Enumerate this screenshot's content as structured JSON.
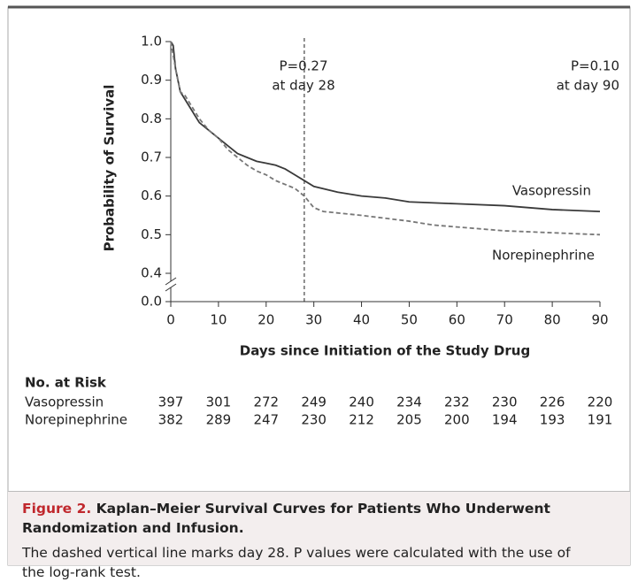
{
  "chart_data": {
    "type": "line",
    "xlabel": "Days since Initiation of the Study Drug",
    "ylabel": "Probability of Survival",
    "xlim": [
      0,
      90
    ],
    "xticks": [
      0,
      10,
      20,
      30,
      40,
      50,
      60,
      70,
      80,
      90
    ],
    "ylim": [
      0.4,
      1.0
    ],
    "yticks": [
      {
        "value": 0,
        "label": "0.0"
      },
      0.4,
      0.5,
      0.6,
      0.7,
      0.8,
      0.9,
      {
        "value": 1,
        "label": "1.0"
      }
    ],
    "axis_break": true,
    "reference_line_x": 28,
    "annotations": [
      "P=0.27",
      "at day 28",
      "P=0.10",
      "at day 90"
    ],
    "series": [
      {
        "name": "Vasopressin",
        "color": "#3a3a3a",
        "dashed": false,
        "x": [
          0,
          0.5,
          1,
          2,
          3,
          4,
          5,
          6,
          8,
          10,
          12,
          14,
          16,
          18,
          20,
          22,
          24,
          26,
          28,
          30,
          35,
          40,
          45,
          50,
          60,
          70,
          80,
          90
        ],
        "values": [
          1.0,
          0.99,
          0.93,
          0.87,
          0.85,
          0.83,
          0.81,
          0.79,
          0.77,
          0.75,
          0.73,
          0.71,
          0.7,
          0.69,
          0.685,
          0.68,
          0.67,
          0.655,
          0.64,
          0.625,
          0.61,
          0.6,
          0.595,
          0.585,
          0.58,
          0.575,
          0.565,
          0.56
        ]
      },
      {
        "name": "Norepinephrine",
        "color": "#777777",
        "dashed": true,
        "x": [
          0,
          1,
          2,
          3,
          4,
          5,
          6,
          8,
          10,
          12,
          14,
          16,
          18,
          20,
          22,
          24,
          26,
          28,
          30,
          32,
          40,
          50,
          55,
          60,
          70,
          80,
          90
        ],
        "values": [
          1.0,
          0.93,
          0.87,
          0.86,
          0.84,
          0.82,
          0.8,
          0.77,
          0.75,
          0.72,
          0.7,
          0.68,
          0.665,
          0.655,
          0.64,
          0.63,
          0.62,
          0.6,
          0.57,
          0.56,
          0.55,
          0.535,
          0.525,
          0.52,
          0.51,
          0.505,
          0.5
        ]
      }
    ],
    "risk_table": {
      "title": "No. at Risk",
      "rows": [
        {
          "name": "Vasopressin",
          "values": [
            397,
            301,
            272,
            249,
            240,
            234,
            232,
            230,
            226,
            220
          ]
        },
        {
          "name": "Norepinephrine",
          "values": [
            382,
            289,
            247,
            230,
            212,
            205,
            200,
            194,
            193,
            191
          ]
        }
      ]
    }
  },
  "caption": {
    "label": "Figure 2.",
    "title": "Kaplan–Meier Survival Curves for Patients Who Underwent Randomization and Infusion.",
    "text": "The dashed vertical line marks day 28. P values were calculated with the use of the log-rank test."
  }
}
